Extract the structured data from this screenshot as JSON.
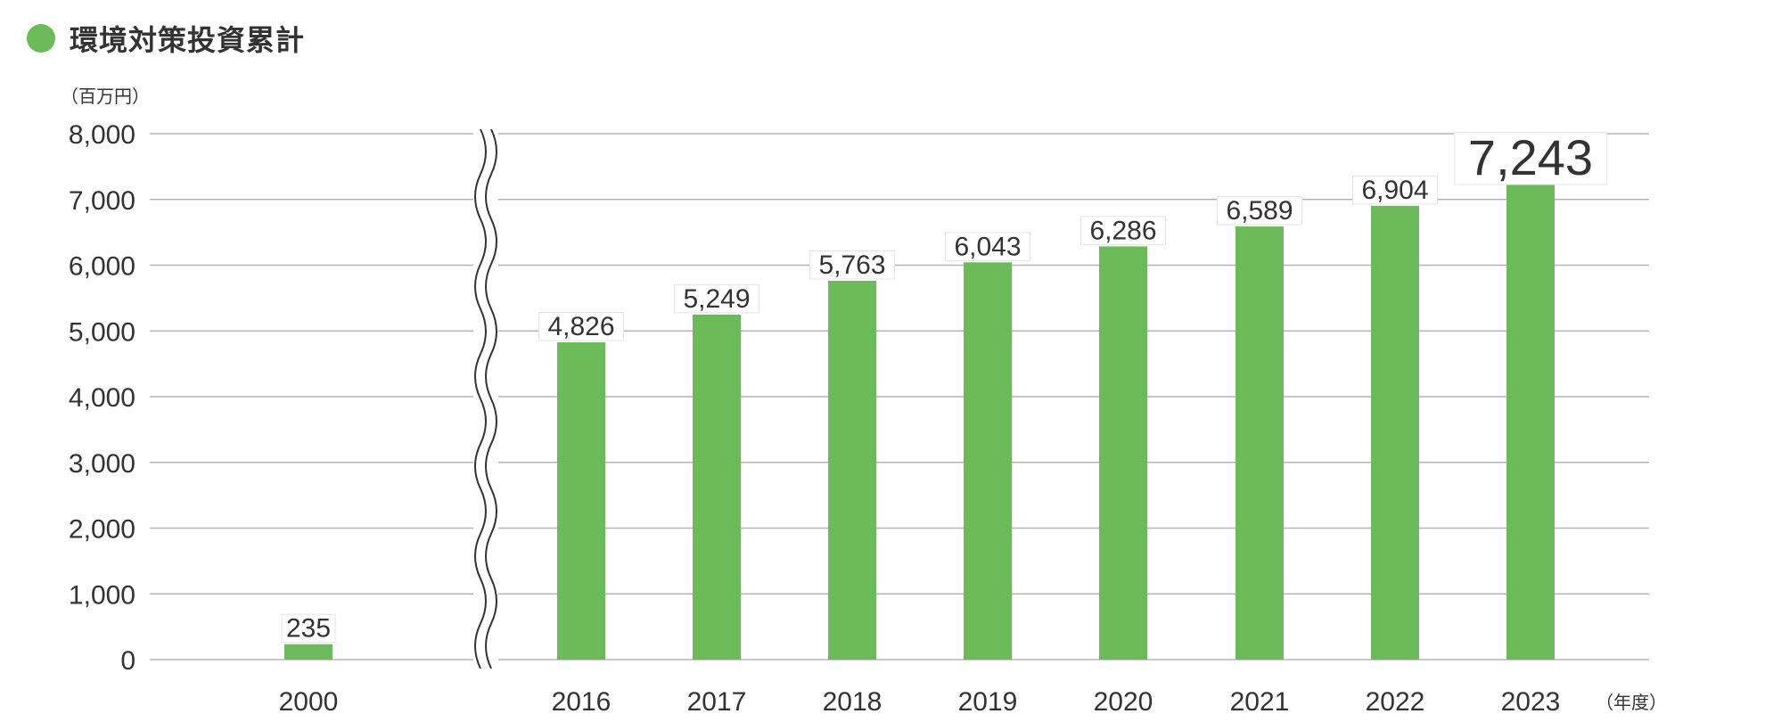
{
  "chart_title": "環境対策投資累計",
  "colors": {
    "bar": "#6cba5a",
    "title_dot": "#6cba5a",
    "highlight_label": "#6cba5a",
    "grid": "#b5b5b5",
    "text": "#333333"
  },
  "chart_data": {
    "type": "bar",
    "title": "環境対策投資累計",
    "ylabel": "（百万円）",
    "xlabel": "（年度）",
    "ylim": [
      0,
      8000
    ],
    "y_ticks": [
      0,
      1000,
      2000,
      3000,
      4000,
      5000,
      6000,
      7000,
      8000
    ],
    "y_tick_labels": [
      "0",
      "1,000",
      "2,000",
      "3,000",
      "4,000",
      "5,000",
      "6,000",
      "7,000",
      "8,000"
    ],
    "grid": true,
    "axis_break": "between 2000 and 2016",
    "categories": [
      "2000",
      "2016",
      "2017",
      "2018",
      "2019",
      "2020",
      "2021",
      "2022",
      "2023"
    ],
    "values": [
      235,
      4826,
      5249,
      5763,
      6043,
      6286,
      6589,
      6904,
      7243
    ],
    "value_labels": [
      "235",
      "4,826",
      "5,249",
      "5,763",
      "6,043",
      "6,286",
      "6,589",
      "6,904",
      "7,243"
    ],
    "highlight_category": "2023"
  }
}
